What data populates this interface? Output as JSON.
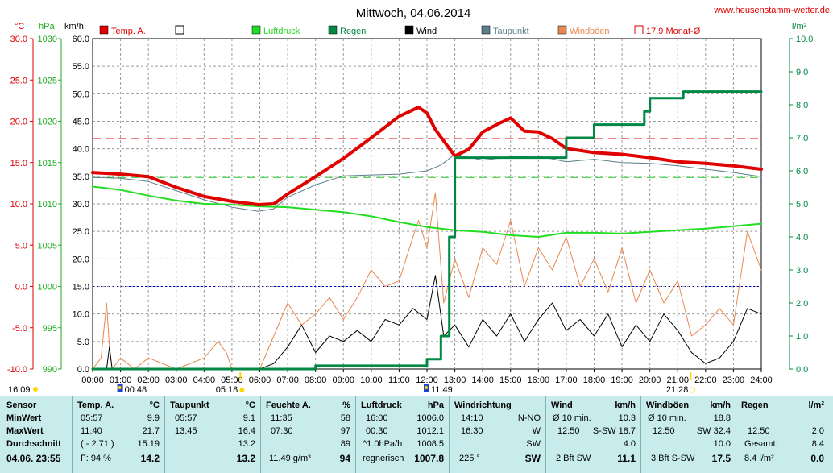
{
  "header": {
    "title": "Mittwoch, 04.06.2014",
    "website": "www.heusenstamm-wetter.de",
    "unit_temp": "°C",
    "unit_pressure": "hPa",
    "unit_wind": "km/h",
    "unit_rain": "l/m²"
  },
  "legend": [
    {
      "label": "Temp. A.",
      "color": "#e00000",
      "symbol": "filled"
    },
    {
      "label": "",
      "color": "#000000",
      "symbol": "empty"
    },
    {
      "label": "Luftdruck",
      "color": "#22dd22",
      "symbol": "filled"
    },
    {
      "label": "Regen",
      "color": "#008844",
      "symbol": "filled"
    },
    {
      "label": "Wind",
      "color": "#000000",
      "symbol": "filled"
    },
    {
      "label": "Taupunkt",
      "color": "#5a7f8a",
      "symbol": "filled"
    },
    {
      "label": "Windböen",
      "color": "#e88850",
      "symbol": "filled"
    },
    {
      "label": "17.9 Monat-Ø",
      "color": "#e00000",
      "symbol": "open"
    }
  ],
  "sun": {
    "sunrise": "05:18",
    "sunset": "21:28"
  },
  "axis_markers": [
    {
      "label": "16:09",
      "side": "left"
    },
    {
      "label": "00:48",
      "hour": 1
    },
    {
      "label": "11:49",
      "hour": 12
    }
  ],
  "chart_data": {
    "type": "line",
    "x_ticks": [
      "00:00",
      "01:00",
      "02:00",
      "03:00",
      "04:00",
      "05:00",
      "06:00",
      "07:00",
      "08:00",
      "09:00",
      "10:00",
      "11:00",
      "12:00",
      "13:00",
      "14:00",
      "15:00",
      "16:00",
      "17:00",
      "18:00",
      "19:00",
      "20:00",
      "21:00",
      "22:00",
      "23:00",
      "24:00"
    ],
    "x_range_hours": [
      0,
      24
    ],
    "axes": {
      "temperature": {
        "label": "°C",
        "range": [
          -10,
          30
        ],
        "ticks": [
          "30.0",
          "25.0",
          "20.0",
          "15.0",
          "10.0",
          "5.0",
          "0.0",
          "-5.0",
          "-10.0"
        ]
      },
      "pressure": {
        "label": "hPa",
        "range": [
          990,
          1030
        ],
        "ticks": [
          "1030",
          "1025",
          "1020",
          "1015",
          "1010",
          "1005",
          "1000",
          "995",
          "990"
        ]
      },
      "wind": {
        "label": "km/h",
        "range": [
          0,
          60
        ],
        "ticks": [
          "60.0",
          "55.0",
          "50.0",
          "45.0",
          "40.0",
          "35.0",
          "30.0",
          "25.0",
          "20.0",
          "15.0",
          "10.0",
          "5.0",
          "0.0"
        ]
      },
      "rain": {
        "label": "l/m²",
        "range": [
          0,
          10
        ],
        "ticks": [
          "10.0",
          "9.0",
          "8.0",
          "7.0",
          "6.0",
          "5.0",
          "4.0",
          "3.0",
          "2.0",
          "1.0",
          "0.0"
        ]
      }
    },
    "reference_lines": [
      {
        "name": "17.9 Monat-Ø",
        "axis": "temperature",
        "value": 17.9,
        "color": "#e00000"
      },
      {
        "name": "Taupunkt-ref",
        "axis": "temperature",
        "value": 13.2,
        "color": "#22cc22"
      },
      {
        "name": "Frost",
        "axis": "temperature",
        "value": 0.0,
        "color": "#0000cc"
      }
    ],
    "series": [
      {
        "name": "Temp. A.",
        "axis": "temperature",
        "color": "#e00000",
        "width": 4,
        "x": [
          0,
          1,
          2,
          3,
          4,
          5,
          5.95,
          6.5,
          7,
          8,
          9,
          10,
          11,
          11.7,
          12,
          12.3,
          13,
          13.5,
          14,
          14.5,
          15,
          15.5,
          16,
          16.5,
          17,
          18,
          19,
          20,
          21,
          22,
          23,
          24
        ],
        "y": [
          13.8,
          13.6,
          13.3,
          12.0,
          10.9,
          10.3,
          9.9,
          10.0,
          11.2,
          13.3,
          15.5,
          18.0,
          20.6,
          21.7,
          21.0,
          19.0,
          15.8,
          16.6,
          18.7,
          19.6,
          20.4,
          18.8,
          18.7,
          17.9,
          16.7,
          16.2,
          16.0,
          15.6,
          15.1,
          14.9,
          14.6,
          14.2
        ]
      },
      {
        "name": "Taupunkt",
        "axis": "temperature",
        "color": "#5a7f8a",
        "width": 1,
        "x": [
          0,
          1,
          2,
          3,
          4,
          5,
          5.95,
          6.5,
          7,
          8,
          9,
          10,
          11,
          12,
          12.5,
          13,
          14,
          15,
          16,
          17,
          18,
          19,
          20,
          21,
          22,
          23,
          24
        ],
        "y": [
          13.2,
          13.1,
          12.7,
          11.6,
          10.5,
          9.6,
          9.1,
          9.4,
          10.8,
          12.3,
          13.4,
          13.5,
          13.6,
          14.0,
          14.7,
          16.0,
          15.3,
          15.7,
          15.8,
          15.1,
          15.4,
          15.0,
          14.9,
          14.6,
          14.2,
          13.8,
          13.3
        ]
      },
      {
        "name": "Luftdruck",
        "axis": "pressure",
        "color": "#22dd22",
        "width": 2,
        "x": [
          0,
          1,
          2,
          3,
          4,
          5,
          6,
          7,
          8,
          9,
          10,
          11,
          12,
          13,
          14,
          15,
          16,
          17,
          18,
          19,
          20,
          21,
          22,
          23,
          24
        ],
        "y": [
          1012.1,
          1011.7,
          1011.0,
          1010.4,
          1010.0,
          1009.9,
          1009.7,
          1009.6,
          1009.3,
          1009.0,
          1008.5,
          1007.8,
          1007.2,
          1006.8,
          1006.6,
          1006.2,
          1006.0,
          1006.5,
          1006.5,
          1006.4,
          1006.6,
          1006.8,
          1007.0,
          1007.3,
          1007.6
        ]
      },
      {
        "name": "Regen",
        "axis": "rain",
        "color": "#008844",
        "width": 3,
        "step": true,
        "x": [
          0,
          7.95,
          8,
          11.8,
          12,
          12.5,
          12.8,
          13,
          16.8,
          17,
          17.6,
          18,
          19,
          19.8,
          20,
          20.5,
          21,
          21.2,
          22,
          24
        ],
        "y": [
          0.0,
          0.0,
          0.1,
          0.1,
          0.3,
          1.0,
          4.0,
          6.4,
          6.4,
          7.0,
          7.0,
          7.4,
          7.4,
          7.8,
          8.2,
          8.2,
          8.2,
          8.4,
          8.4,
          8.4
        ]
      },
      {
        "name": "Wind",
        "axis": "wind",
        "color": "#000000",
        "width": 1,
        "x": [
          0,
          0.5,
          0.6,
          0.7,
          1,
          1.5,
          2,
          3,
          4,
          5,
          5.2,
          5.5,
          6,
          6.5,
          7,
          7.5,
          8,
          8.5,
          9,
          9.5,
          10,
          10.5,
          11,
          11.5,
          12,
          12.3,
          12.6,
          13,
          13.5,
          14,
          14.5,
          15,
          15.5,
          16,
          16.5,
          17,
          17.5,
          18,
          18.5,
          19,
          19.5,
          20,
          20.5,
          21,
          21.5,
          22,
          22.5,
          23,
          23.5,
          24
        ],
        "y": [
          0,
          0,
          4,
          0,
          0,
          0,
          0,
          0,
          0,
          0,
          0,
          0,
          0,
          1,
          4,
          8,
          3,
          6,
          5,
          7,
          5,
          9,
          8,
          11,
          9,
          17,
          6,
          8,
          4,
          9,
          6,
          10,
          5,
          9,
          12,
          7,
          9,
          6,
          10,
          4,
          8,
          5,
          10,
          7,
          3,
          1,
          2,
          5,
          11,
          10
        ]
      },
      {
        "name": "Windböen",
        "axis": "wind",
        "color": "#e88850",
        "width": 1,
        "x": [
          0,
          0.3,
          0.5,
          0.6,
          0.7,
          1,
          1.5,
          2,
          3,
          4,
          4.5,
          4.8,
          5,
          5.5,
          6,
          6.5,
          7,
          7.5,
          8,
          8.5,
          9,
          9.5,
          10,
          10.5,
          11,
          11.5,
          11.7,
          12,
          12.3,
          12.6,
          13,
          13.5,
          14,
          14.5,
          15,
          15.5,
          16,
          16.5,
          17,
          17.5,
          18,
          18.5,
          19,
          19.5,
          20,
          20.5,
          21,
          21.5,
          22,
          22.5,
          23,
          23.5,
          24
        ],
        "y": [
          0,
          2,
          12,
          4,
          0,
          2,
          0,
          2,
          0,
          2,
          5,
          3,
          0,
          0,
          0,
          6,
          12,
          8,
          10,
          13,
          9,
          13,
          18,
          15,
          16,
          24,
          27,
          22,
          32,
          12,
          20,
          13,
          22,
          19,
          27,
          15,
          22,
          18,
          24,
          15,
          20,
          14,
          22,
          12,
          18,
          12,
          16,
          6,
          8,
          11,
          8,
          25,
          18
        ]
      }
    ]
  },
  "stats": {
    "label": {
      "header": "Sensor",
      "min": "MinWert",
      "max": "MaxWert",
      "avg": "Durchschnitt",
      "now": "04.06. 23:55"
    },
    "temp": {
      "header": "Temp. A.",
      "unit": "°C",
      "min_t": "05:57",
      "min_v": "9.9",
      "max_t": "11:40",
      "max_v": "21.7",
      "avg_t": "( - 2.71 )",
      "avg_v": "15.19",
      "now_t": "F: 94 %",
      "now_v": "14.2"
    },
    "dew": {
      "header": "Taupunkt",
      "unit": "°C",
      "min_t": "05:57",
      "min_v": "9.1",
      "max_t": "13:45",
      "max_v": "16.4",
      "avg_t": "",
      "avg_v": "13.2",
      "now_t": "",
      "now_v": "13.2"
    },
    "hum": {
      "header": "Feuchte A.",
      "unit": "%",
      "min_t": "11:35",
      "min_v": "58",
      "max_t": "07:30",
      "max_v": "97",
      "avg_t": "",
      "avg_v": "89",
      "now_t": "11.49 g/m³",
      "now_v": "94"
    },
    "press": {
      "header": "Luftdruck",
      "unit": "hPa",
      "min_t": "16:00",
      "min_v": "1006.0",
      "max_t": "00:30",
      "max_v": "1012.1",
      "avg_t": "^1.0hPa/h",
      "avg_v": "1008.5",
      "now_t": "regnerisch",
      "now_v": "1007.8"
    },
    "dir": {
      "header": "Windrichtung",
      "min_t": "14:10",
      "min_v": "N-NO",
      "max_t": "16:30",
      "max_v": "W",
      "avg_v": "SW",
      "now_t": "225 °",
      "now_v": "SW"
    },
    "wind": {
      "header": "Wind",
      "unit": "km/h",
      "min_t": "Ø 10 min.",
      "min_v": "10.3",
      "max_t": "12:50",
      "max_m": "S-SW 18.7",
      "avg_v": "4.0",
      "now_t": "2 Bft SW",
      "now_v": "11.1"
    },
    "gust": {
      "header": "Windböen",
      "unit": "km/h",
      "min_t": "Ø 10 min.",
      "min_v": "18.8",
      "max_t": "12:50",
      "max_m": "SW 32.4",
      "avg_v": "10.0",
      "now_t": "3 Bft S-SW",
      "now_v": "17.5"
    },
    "rain": {
      "header": "Regen",
      "unit": "l/m²",
      "max_t": "12:50",
      "max_v": "2.0",
      "avg_t": "Gesamt:",
      "avg_v": "8.4",
      "now_t": "8.4 l/m²",
      "now_v": "0.0"
    }
  }
}
